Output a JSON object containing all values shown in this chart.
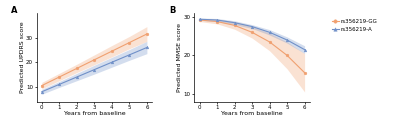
{
  "panel_A": {
    "title": "A",
    "ylabel": "Predicted UPDRS score",
    "xlabel": "Years from baseline",
    "x": [
      0,
      1,
      2,
      3,
      4,
      5,
      6
    ],
    "gg_mean": [
      10.5,
      14.0,
      17.5,
      21.0,
      24.5,
      28.0,
      31.5
    ],
    "gg_lower": [
      9.2,
      12.5,
      15.8,
      19.0,
      22.2,
      25.5,
      28.5
    ],
    "gg_upper": [
      11.8,
      15.5,
      19.2,
      23.0,
      26.8,
      30.5,
      34.5
    ],
    "a_mean": [
      8.0,
      11.0,
      14.0,
      17.0,
      20.0,
      23.0,
      26.0
    ],
    "a_lower": [
      7.0,
      9.8,
      12.5,
      15.2,
      18.0,
      20.8,
      23.5
    ],
    "a_upper": [
      9.0,
      12.2,
      15.5,
      18.8,
      22.0,
      25.2,
      28.5
    ],
    "gg_color": "#F0A070",
    "a_color": "#7090C8",
    "ylim": [
      4,
      40
    ],
    "yticks": [
      10,
      20,
      30
    ],
    "xticks": [
      0,
      1,
      2,
      3,
      4,
      5,
      6
    ]
  },
  "panel_B": {
    "title": "B",
    "ylabel": "Predicted MMSE score",
    "xlabel": "Years from baseline",
    "x": [
      0,
      1,
      2,
      3,
      4,
      5,
      6
    ],
    "gg_mean": [
      29.2,
      28.8,
      27.8,
      26.0,
      23.5,
      20.0,
      15.5
    ],
    "gg_lower": [
      28.8,
      28.2,
      26.8,
      24.5,
      21.2,
      16.5,
      10.5
    ],
    "gg_upper": [
      29.6,
      29.4,
      28.8,
      27.5,
      25.8,
      23.5,
      20.5
    ],
    "a_mean": [
      29.4,
      29.2,
      28.5,
      27.5,
      26.0,
      24.0,
      21.5
    ],
    "a_lower": [
      29.1,
      28.8,
      28.0,
      27.0,
      25.3,
      23.2,
      20.5
    ],
    "a_upper": [
      29.7,
      29.6,
      29.0,
      28.0,
      26.7,
      24.8,
      22.5
    ],
    "gg_color": "#F0A070",
    "a_color": "#7090C8",
    "ylim": [
      8,
      31
    ],
    "yticks": [
      10,
      20,
      30
    ],
    "xticks": [
      0,
      1,
      2,
      3,
      4,
      5,
      6
    ]
  },
  "legend": {
    "gg_label": "rs356219-GG",
    "a_label": "rs356219-A",
    "gg_color": "#F0A070",
    "a_color": "#7090C8"
  },
  "background": "#ffffff",
  "marker_size": 2.0,
  "linewidth": 0.8,
  "font_size": 5.5,
  "label_font_size": 4.5,
  "tick_font_size": 4.0
}
